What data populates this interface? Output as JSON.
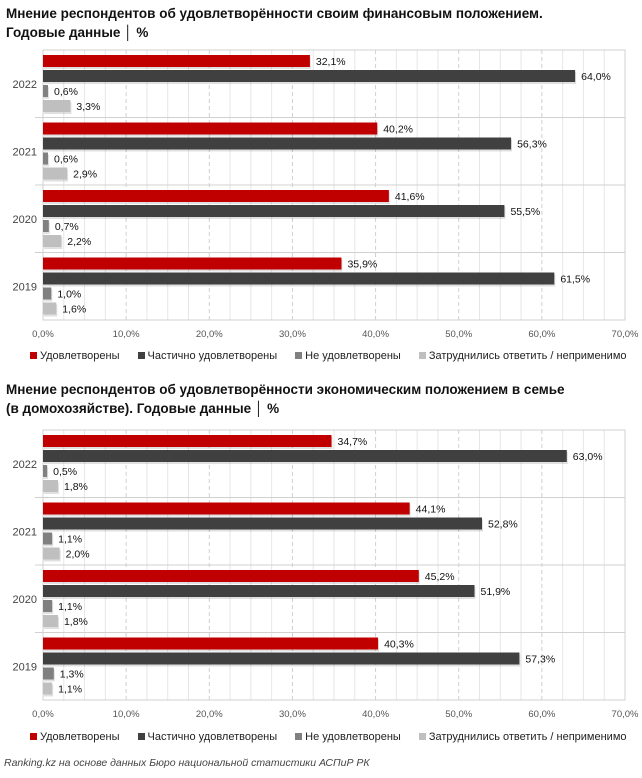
{
  "chart_data": [
    {
      "type": "bar",
      "orientation": "horizontal",
      "title": "Мнение респондентов об удовлетворённости своим финансовым положением.",
      "subtitle": "Годовые данные │ %",
      "categories": [
        "2022",
        "2021",
        "2020",
        "2019"
      ],
      "xlim": [
        0,
        70
      ],
      "xticks": [
        "0,0%",
        "10,0%",
        "20,0%",
        "30,0%",
        "40,0%",
        "50,0%",
        "60,0%",
        "70,0%"
      ],
      "legend_position": "bottom",
      "grid": true,
      "series": [
        {
          "name": "Удовлетворены",
          "color": "#c00000",
          "values": [
            32.1,
            40.2,
            41.6,
            35.9
          ],
          "labels": [
            "32,1%",
            "40,2%",
            "41,6%",
            "35,9%"
          ]
        },
        {
          "name": "Частично удовлетворены",
          "color": "#404040",
          "values": [
            64.0,
            56.3,
            55.5,
            61.5
          ],
          "labels": [
            "64,0%",
            "56,3%",
            "55,5%",
            "61,5%"
          ]
        },
        {
          "name": "Не удовлетворены",
          "color": "#808080",
          "values": [
            0.6,
            0.6,
            0.7,
            1.0
          ],
          "labels": [
            "0,6%",
            "0,6%",
            "0,7%",
            "1,0%"
          ]
        },
        {
          "name": "Затруднились ответить / неприменимо",
          "color": "#bfbfbf",
          "values": [
            3.3,
            2.9,
            2.2,
            1.6
          ],
          "labels": [
            "3,3%",
            "2,9%",
            "2,2%",
            "1,6%"
          ]
        }
      ]
    },
    {
      "type": "bar",
      "orientation": "horizontal",
      "title": "Мнение респондентов об удовлетворённости экономическим положением в семье",
      "subtitle": "(в домохозяйстве). Годовые данные │ %",
      "categories": [
        "2022",
        "2021",
        "2020",
        "2019"
      ],
      "xlim": [
        0,
        70
      ],
      "xticks": [
        "0,0%",
        "10,0%",
        "20,0%",
        "30,0%",
        "40,0%",
        "50,0%",
        "60,0%",
        "70,0%"
      ],
      "legend_position": "bottom",
      "grid": true,
      "series": [
        {
          "name": "Удовлетворены",
          "color": "#c00000",
          "values": [
            34.7,
            44.1,
            45.2,
            40.3
          ],
          "labels": [
            "34,7%",
            "44,1%",
            "45,2%",
            "40,3%"
          ]
        },
        {
          "name": "Частично удовлетворены",
          "color": "#404040",
          "values": [
            63.0,
            52.8,
            51.9,
            57.3
          ],
          "labels": [
            "63,0%",
            "52,8%",
            "51,9%",
            "57,3%"
          ]
        },
        {
          "name": "Не удовлетворены",
          "color": "#808080",
          "values": [
            0.5,
            1.1,
            1.1,
            1.3
          ],
          "labels": [
            "0,5%",
            "1,1%",
            "1,1%",
            "1,3%"
          ]
        },
        {
          "name": "Затруднились ответить / неприменимо",
          "color": "#bfbfbf",
          "values": [
            1.8,
            2.0,
            1.8,
            1.1
          ],
          "labels": [
            "1,8%",
            "2,0%",
            "1,8%",
            "1,1%"
          ]
        }
      ]
    }
  ],
  "footer": "Ranking.kz на основе данных Бюро национальной статистики АСПиР РК"
}
